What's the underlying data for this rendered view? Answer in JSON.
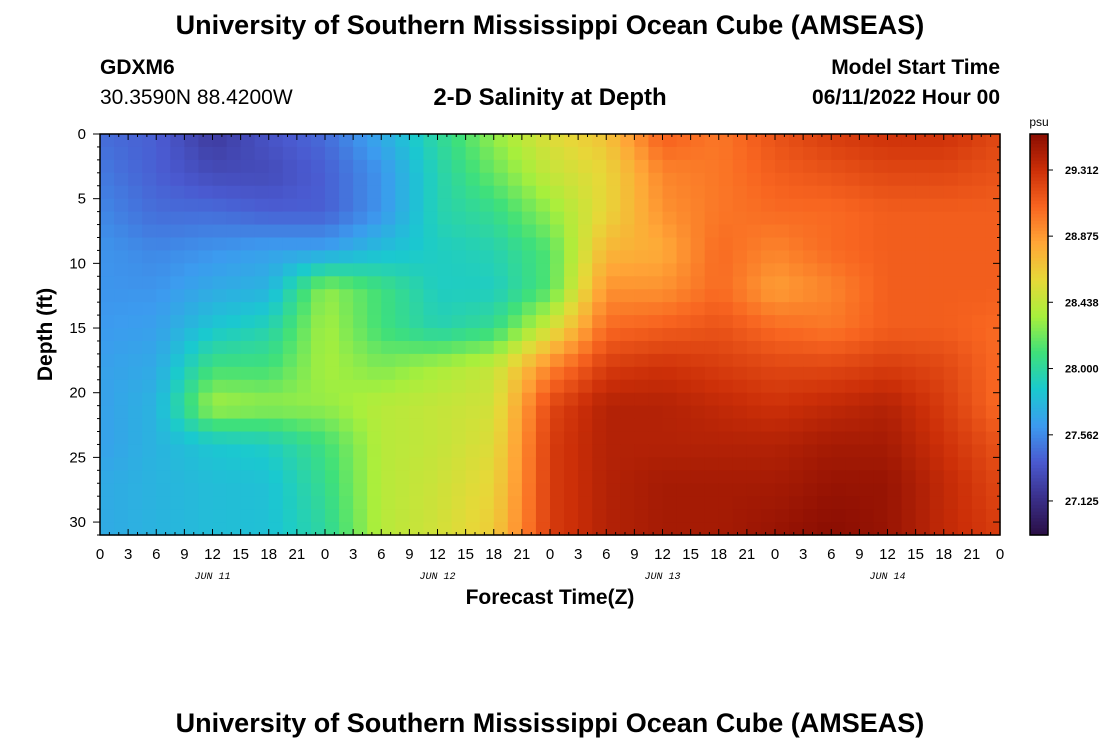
{
  "header": {
    "title": "University of Southern Mississippi Ocean Cube (AMSEAS)",
    "station": "GDXM6",
    "coords": "30.3590N  88.4200W",
    "subtitle": "2-D Salinity at Depth",
    "model_start_label": "Model Start Time",
    "model_start_value": "06/11/2022 Hour 00"
  },
  "footer": {
    "title": "University of Southern Mississippi Ocean Cube (AMSEAS)"
  },
  "chart_data": {
    "type": "heatmap",
    "xlabel": "Forecast Time(Z)",
    "ylabel": "Depth (ft)",
    "x_ticks": [
      "0",
      "3",
      "6",
      "9",
      "12",
      "15",
      "18",
      "21",
      "0",
      "3",
      "6",
      "9",
      "12",
      "15",
      "18",
      "21",
      "0",
      "3",
      "6",
      "9",
      "12",
      "15",
      "18",
      "21",
      "0",
      "3",
      "6",
      "9",
      "12",
      "15",
      "18",
      "21",
      "0"
    ],
    "x_range_hours": [
      0,
      96
    ],
    "day_labels": [
      "JUN 11",
      "JUN 12",
      "JUN 13",
      "JUN 14"
    ],
    "y_ticks": [
      0,
      5,
      10,
      15,
      20,
      25,
      30
    ],
    "y_range": [
      0,
      31
    ],
    "colorbar": {
      "unit": "psu",
      "ticks": [
        29.312,
        28.875,
        28.438,
        28.0,
        27.562,
        27.125
      ],
      "range": [
        26.9,
        29.55
      ],
      "colors": [
        "#2a0f45",
        "#3a2f8a",
        "#4a5ad0",
        "#3c9bef",
        "#1ac9cf",
        "#3fe07a",
        "#a8ef3c",
        "#e7d838",
        "#ffa637",
        "#f86520",
        "#cc2f08",
        "#8a0d02"
      ]
    },
    "depth_levels": [
      0,
      3,
      6,
      9,
      12,
      15,
      18,
      21,
      24,
      27,
      31
    ],
    "time_hours": [
      0,
      6,
      12,
      18,
      24,
      30,
      36,
      42,
      48,
      54,
      60,
      66,
      72,
      78,
      84,
      90,
      96
    ],
    "values": [
      [
        27.45,
        27.4,
        27.2,
        27.35,
        27.45,
        27.7,
        28.0,
        28.3,
        28.55,
        28.7,
        29.1,
        29.0,
        29.15,
        29.25,
        29.3,
        29.3,
        29.2
      ],
      [
        27.5,
        27.4,
        27.3,
        27.3,
        27.4,
        27.6,
        27.95,
        28.2,
        28.45,
        28.6,
        28.95,
        29.0,
        29.1,
        29.15,
        29.2,
        29.2,
        29.15
      ],
      [
        27.55,
        27.45,
        27.45,
        27.4,
        27.4,
        27.6,
        27.95,
        28.05,
        28.3,
        28.6,
        28.9,
        29.0,
        29.05,
        29.05,
        29.1,
        29.1,
        29.1
      ],
      [
        27.6,
        27.55,
        27.6,
        27.65,
        27.65,
        27.8,
        27.9,
        27.95,
        28.15,
        28.75,
        28.8,
        29.05,
        28.95,
        29.05,
        29.1,
        29.1,
        29.1
      ],
      [
        27.6,
        27.6,
        27.7,
        27.75,
        28.3,
        28.1,
        27.9,
        27.9,
        28.15,
        28.9,
        28.9,
        29.05,
        28.85,
        28.95,
        29.1,
        29.1,
        29.1
      ],
      [
        27.62,
        27.65,
        27.85,
        27.95,
        28.35,
        28.1,
        27.95,
        28.05,
        28.5,
        29.05,
        29.1,
        29.15,
        29.05,
        29.0,
        29.1,
        29.1,
        29.05
      ],
      [
        27.65,
        27.7,
        28.1,
        28.1,
        28.35,
        28.25,
        28.35,
        28.45,
        28.95,
        29.25,
        29.3,
        29.25,
        29.2,
        29.2,
        29.25,
        29.2,
        29.05
      ],
      [
        27.65,
        27.75,
        28.35,
        28.3,
        28.3,
        28.4,
        28.45,
        28.5,
        29.2,
        29.4,
        29.4,
        29.35,
        29.3,
        29.35,
        29.4,
        29.25,
        29.05
      ],
      [
        27.65,
        27.75,
        27.85,
        27.9,
        28.1,
        28.4,
        28.45,
        28.55,
        29.25,
        29.4,
        29.4,
        29.4,
        29.4,
        29.45,
        29.45,
        29.3,
        29.15
      ],
      [
        27.7,
        27.75,
        27.8,
        27.82,
        28.05,
        28.4,
        28.48,
        28.6,
        29.25,
        29.4,
        29.45,
        29.45,
        29.45,
        29.5,
        29.5,
        29.35,
        29.2
      ],
      [
        27.7,
        27.75,
        27.8,
        27.82,
        28.0,
        28.4,
        28.5,
        28.65,
        29.25,
        29.4,
        29.45,
        29.45,
        29.5,
        29.55,
        29.5,
        29.35,
        29.25
      ]
    ]
  }
}
